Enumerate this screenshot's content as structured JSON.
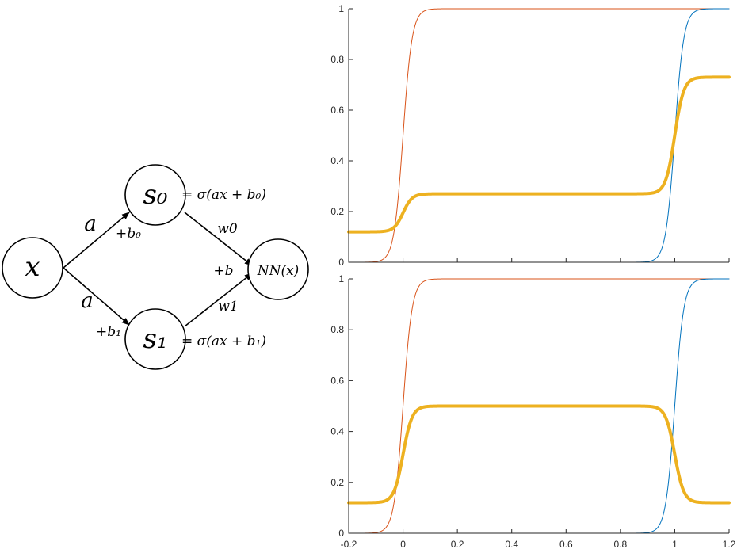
{
  "diagram": {
    "nodes": {
      "x": "x",
      "s0": "s₀",
      "s1": "s₁",
      "nn": "NN(x)"
    },
    "edge_labels": {
      "x_s0_weight": "a",
      "x_s0_bias": "+b₀",
      "x_s1_weight": "a",
      "x_s1_bias": "+b₁",
      "s0_nn_weight": "w0",
      "s1_nn_weight": "w1",
      "nn_bias": "+b"
    },
    "equations": {
      "s0": "= σ(ax + b₀)",
      "s1": "= σ(ax + b₁)"
    }
  },
  "chart_data": [
    {
      "type": "line",
      "xlim": [
        -0.2,
        1.2
      ],
      "ylim": [
        0,
        1
      ],
      "x_ticks": [],
      "y_ticks": [
        "0",
        "0.2",
        "0.4",
        "0.6",
        "0.8",
        "1"
      ],
      "grid": false,
      "series": [
        {
          "color": "#D95319",
          "curve": "sigmoid",
          "center": 0.0,
          "steepness": 60,
          "low": 0,
          "high": 1,
          "stroke": 1
        },
        {
          "color": "#0072BD",
          "curve": "sigmoid",
          "center": 1.0,
          "steepness": 60,
          "low": 0,
          "high": 1,
          "stroke": 1
        },
        {
          "color": "#EDB120",
          "curve": "two_step",
          "base": 0.12,
          "step1_center": 0.0,
          "step1_height": 0.15,
          "step2_center": 1.0,
          "step2_height": 0.46,
          "steepness": 60,
          "stroke": 4
        }
      ]
    },
    {
      "type": "line",
      "xlim": [
        -0.2,
        1.2
      ],
      "ylim": [
        0,
        1
      ],
      "x_ticks": [
        "-0.2",
        "0",
        "0.2",
        "0.4",
        "0.6",
        "0.8",
        "1",
        "1.2"
      ],
      "y_ticks": [
        "0",
        "0.2",
        "0.4",
        "0.6",
        "0.8",
        "1"
      ],
      "grid": false,
      "series": [
        {
          "color": "#D95319",
          "curve": "sigmoid",
          "center": 0.0,
          "steepness": 60,
          "low": 0,
          "high": 1,
          "stroke": 1
        },
        {
          "color": "#0072BD",
          "curve": "sigmoid",
          "center": 1.0,
          "steepness": 60,
          "low": 0,
          "high": 1,
          "stroke": 1
        },
        {
          "color": "#EDB120",
          "curve": "two_step",
          "base": 0.12,
          "step1_center": 0.0,
          "step1_height": 0.38,
          "step2_center": 1.0,
          "step2_height": -0.38,
          "steepness": 60,
          "stroke": 4
        }
      ]
    }
  ]
}
